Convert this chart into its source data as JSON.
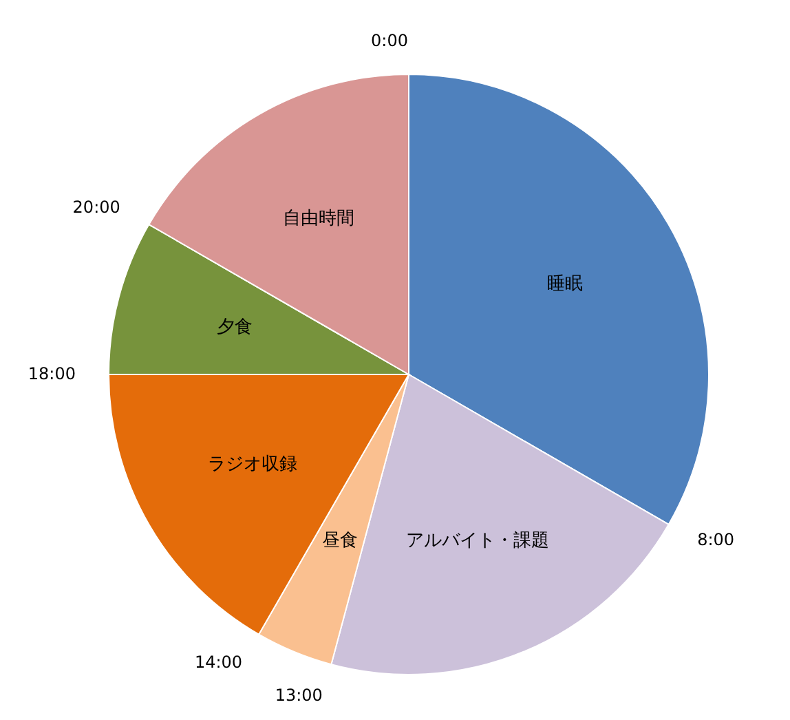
{
  "chart_data": {
    "type": "pie",
    "categories": [
      "睡眠",
      "アルバイト・課題",
      "昼食",
      "ラジオ収録",
      "夕食",
      "自由時間"
    ],
    "values": [
      33.33,
      20.83,
      4.17,
      16.67,
      8.33,
      16.67
    ],
    "colors": [
      "#4f81bd",
      "#ccc1da",
      "#fac090",
      "#e46c0a",
      "#77933c",
      "#d99694"
    ],
    "annotations": [
      "0:00",
      "8:00",
      "13:00",
      "14:00",
      "18:00",
      "20:00"
    ]
  }
}
